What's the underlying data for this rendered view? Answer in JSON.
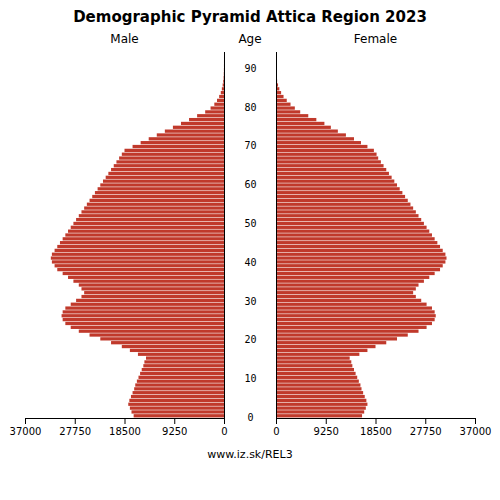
{
  "chart_data": {
    "type": "bar",
    "orientation": "horizontal",
    "title": "Demographic Pyramid Attica Region 2023",
    "ylabel": "Age",
    "annotations": [
      "www.iz.sk/REL3"
    ],
    "categories": [
      "0",
      null,
      null,
      null,
      null,
      null,
      null,
      null,
      null,
      null,
      "10",
      null,
      null,
      null,
      null,
      null,
      null,
      null,
      null,
      null,
      "20",
      null,
      null,
      null,
      null,
      null,
      null,
      null,
      null,
      null,
      "30",
      null,
      null,
      null,
      null,
      null,
      null,
      null,
      null,
      null,
      "40",
      null,
      null,
      null,
      null,
      null,
      null,
      null,
      null,
      null,
      "50",
      null,
      null,
      null,
      null,
      null,
      null,
      null,
      null,
      null,
      "60",
      null,
      null,
      null,
      null,
      null,
      null,
      null,
      null,
      null,
      "70",
      null,
      null,
      null,
      null,
      null,
      null,
      null,
      null,
      null,
      "80",
      null,
      null,
      null,
      null,
      null,
      null,
      null,
      null,
      null,
      "90",
      null,
      null,
      null,
      null
    ],
    "series": [
      {
        "name": "Male",
        "color": "#c0392b",
        "values": [
          16800,
          17200,
          17500,
          17800,
          17600,
          17300,
          17000,
          16700,
          16500,
          16200,
          15900,
          15600,
          15300,
          15000,
          14800,
          14500,
          16000,
          17500,
          19000,
          21000,
          23000,
          25000,
          27000,
          28500,
          29500,
          30000,
          30200,
          30000,
          29500,
          28500,
          27500,
          26500,
          26000,
          26500,
          27000,
          28000,
          29000,
          30000,
          31000,
          31500,
          32000,
          32200,
          32000,
          31500,
          31000,
          30500,
          30000,
          29500,
          29000,
          28500,
          28000,
          27500,
          27000,
          26500,
          26000,
          25500,
          25000,
          24500,
          24000,
          23500,
          23000,
          22500,
          22000,
          21500,
          21000,
          20500,
          20000,
          19500,
          19000,
          18500,
          17000,
          15500,
          14000,
          12500,
          11000,
          9500,
          8000,
          6500,
          5000,
          3500,
          2500,
          1800,
          1300,
          900,
          600,
          400,
          250,
          150,
          80,
          40,
          20,
          10,
          5,
          3,
          1
        ]
      },
      {
        "name": "Female",
        "color": "#c0392b",
        "values": [
          16000,
          16400,
          16700,
          17000,
          16800,
          16500,
          16200,
          15900,
          15700,
          15400,
          15100,
          14800,
          14500,
          14200,
          14000,
          13700,
          15500,
          17000,
          18500,
          20500,
          22500,
          24500,
          26500,
          28000,
          29000,
          29500,
          29700,
          29500,
          29000,
          28000,
          27000,
          26000,
          25500,
          26000,
          26500,
          27500,
          28500,
          29500,
          30500,
          31000,
          31500,
          31700,
          31500,
          31000,
          30500,
          30000,
          29500,
          29000,
          28500,
          28000,
          27500,
          27000,
          26500,
          26000,
          25500,
          25000,
          24500,
          24000,
          23500,
          23000,
          22500,
          22000,
          21500,
          21000,
          20500,
          20000,
          19500,
          19000,
          18700,
          18200,
          17000,
          15800,
          14500,
          13000,
          11500,
          10200,
          9000,
          7500,
          6000,
          4500,
          3500,
          2700,
          2000,
          1400,
          950,
          620,
          380,
          210,
          100,
          45,
          18,
          7,
          3,
          1,
          0
        ]
      }
    ],
    "xlim": [
      0,
      37000
    ],
    "xticks": [
      0,
      9250,
      18500,
      27750,
      37000
    ],
    "grid": false
  }
}
